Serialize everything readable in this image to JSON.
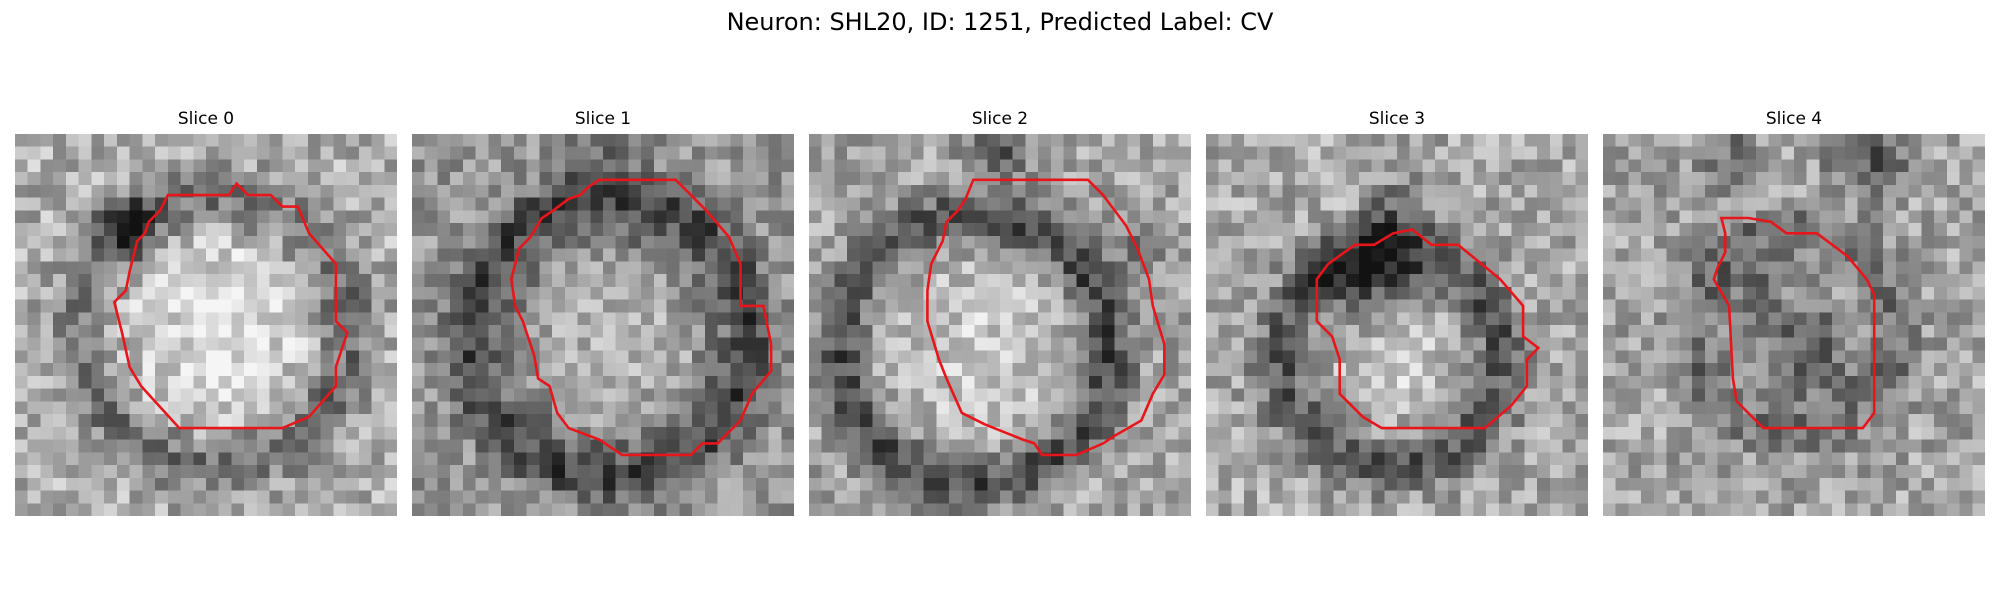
{
  "figure": {
    "title": "Neuron: SHL20, ID: 1251, Predicted Label: CV"
  },
  "panels": [
    {
      "title": "Slice 0"
    },
    {
      "title": "Slice 1"
    },
    {
      "title": "Slice 2"
    },
    {
      "title": "Slice 3"
    },
    {
      "title": "Slice 4"
    }
  ],
  "colors": {
    "background": "#ffffff",
    "outline": "#e8151b"
  }
}
